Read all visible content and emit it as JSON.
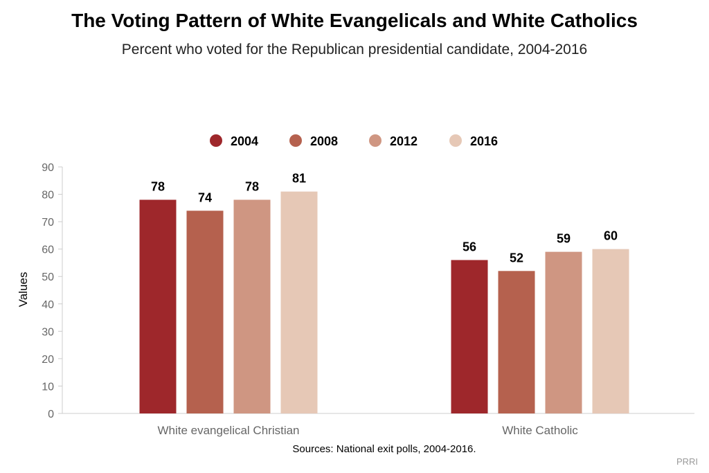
{
  "title": "The Voting Pattern of White Evangelicals and White Catholics",
  "subtitle": "Percent who voted for the Republican presidential candidate, 2004-2016",
  "source": "Sources: National exit polls, 2004-2016.",
  "brand": "PRRI",
  "chart_data": {
    "type": "bar",
    "categories": [
      "White evangelical Christian",
      "White Catholic"
    ],
    "series": [
      {
        "name": "2004",
        "values": [
          78,
          56
        ],
        "color": "#9e272b"
      },
      {
        "name": "2008",
        "values": [
          74,
          52
        ],
        "color": "#b5614e"
      },
      {
        "name": "2012",
        "values": [
          78,
          59
        ],
        "color": "#cf9682"
      },
      {
        "name": "2016",
        "values": [
          81,
          60
        ],
        "color": "#e6c8b6"
      }
    ],
    "ylabel": "Values",
    "xlabel": "",
    "ylim": [
      0,
      90
    ],
    "yticks": [
      0,
      10,
      20,
      30,
      40,
      50,
      60,
      70,
      80,
      90
    ],
    "grid": false,
    "legend": "top-center",
    "data_labels": true
  }
}
